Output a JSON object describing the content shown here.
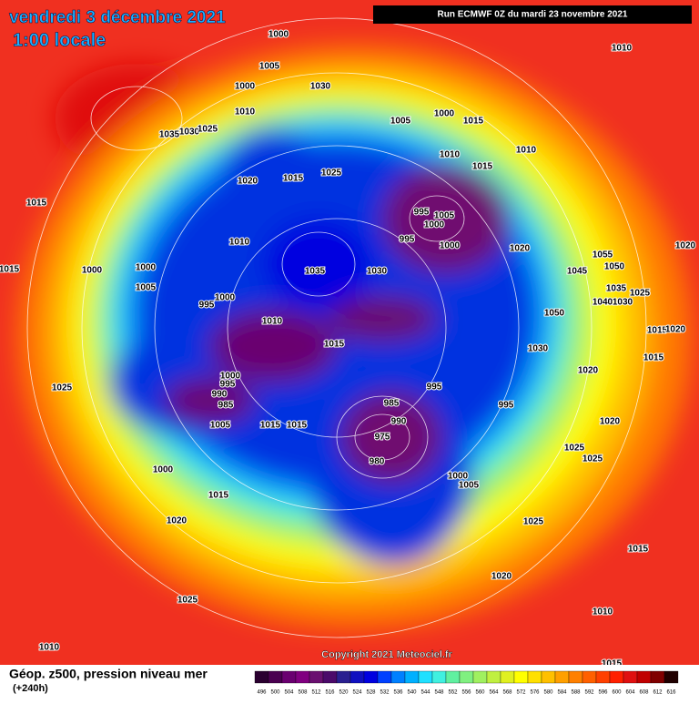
{
  "header": {
    "title": "vendredi 3 décembre 2021",
    "time": "1:00 locale",
    "run": "Run ECMWF 0Z du mardi 23 novembre 2021"
  },
  "footer": {
    "field": "Géop. z500, pression niveau mer",
    "lead": "(+240h)",
    "copyright": "Copyright 2021 Meteociel.fr"
  },
  "isobar_labels": [
    1000,
    1005,
    1000,
    1010,
    1030,
    1035,
    1030,
    1025,
    1020,
    1015,
    1025,
    1010,
    1000,
    1005,
    1015,
    1010,
    1015,
    1010,
    995,
    1005,
    1000,
    995,
    1000,
    1020,
    1015,
    1015,
    1010,
    1000,
    1000,
    1005,
    1000,
    995,
    1035,
    1030,
    1045,
    1055,
    1050,
    1035,
    1040,
    1030,
    1025,
    1050,
    1010,
    1015,
    1030,
    1015,
    1020,
    1020,
    1015,
    1020,
    1000,
    995,
    990,
    985,
    1025,
    995,
    985,
    990,
    975,
    980,
    995,
    1020,
    1025,
    1025,
    1005,
    1015,
    1015,
    1000,
    1000,
    1005,
    1015,
    1020,
    1025,
    1015,
    1020,
    1025,
    1010,
    1010,
    1015
  ],
  "scale": {
    "labels": [
      496,
      500,
      504,
      508,
      512,
      516,
      520,
      524,
      528,
      532,
      536,
      540,
      544,
      548,
      552,
      556,
      560,
      564,
      568,
      572,
      576,
      580,
      584,
      588,
      592,
      596,
      600,
      604,
      608,
      612,
      616
    ],
    "colors": [
      "#2a0030",
      "#4a0050",
      "#6a0070",
      "#800080",
      "#6a1070",
      "#4b0a6a",
      "#2a2090",
      "#1010c0",
      "#0000e0",
      "#0040ff",
      "#0080ff",
      "#00b0ff",
      "#20e0ff",
      "#40f0e0",
      "#60f0a0",
      "#80f080",
      "#a0f060",
      "#c0f040",
      "#e0f020",
      "#ffff00",
      "#ffe000",
      "#ffc000",
      "#ffa000",
      "#ff8000",
      "#ff6000",
      "#ff4000",
      "#ff2000",
      "#e01010",
      "#c00000",
      "#800000",
      "#200000"
    ]
  }
}
